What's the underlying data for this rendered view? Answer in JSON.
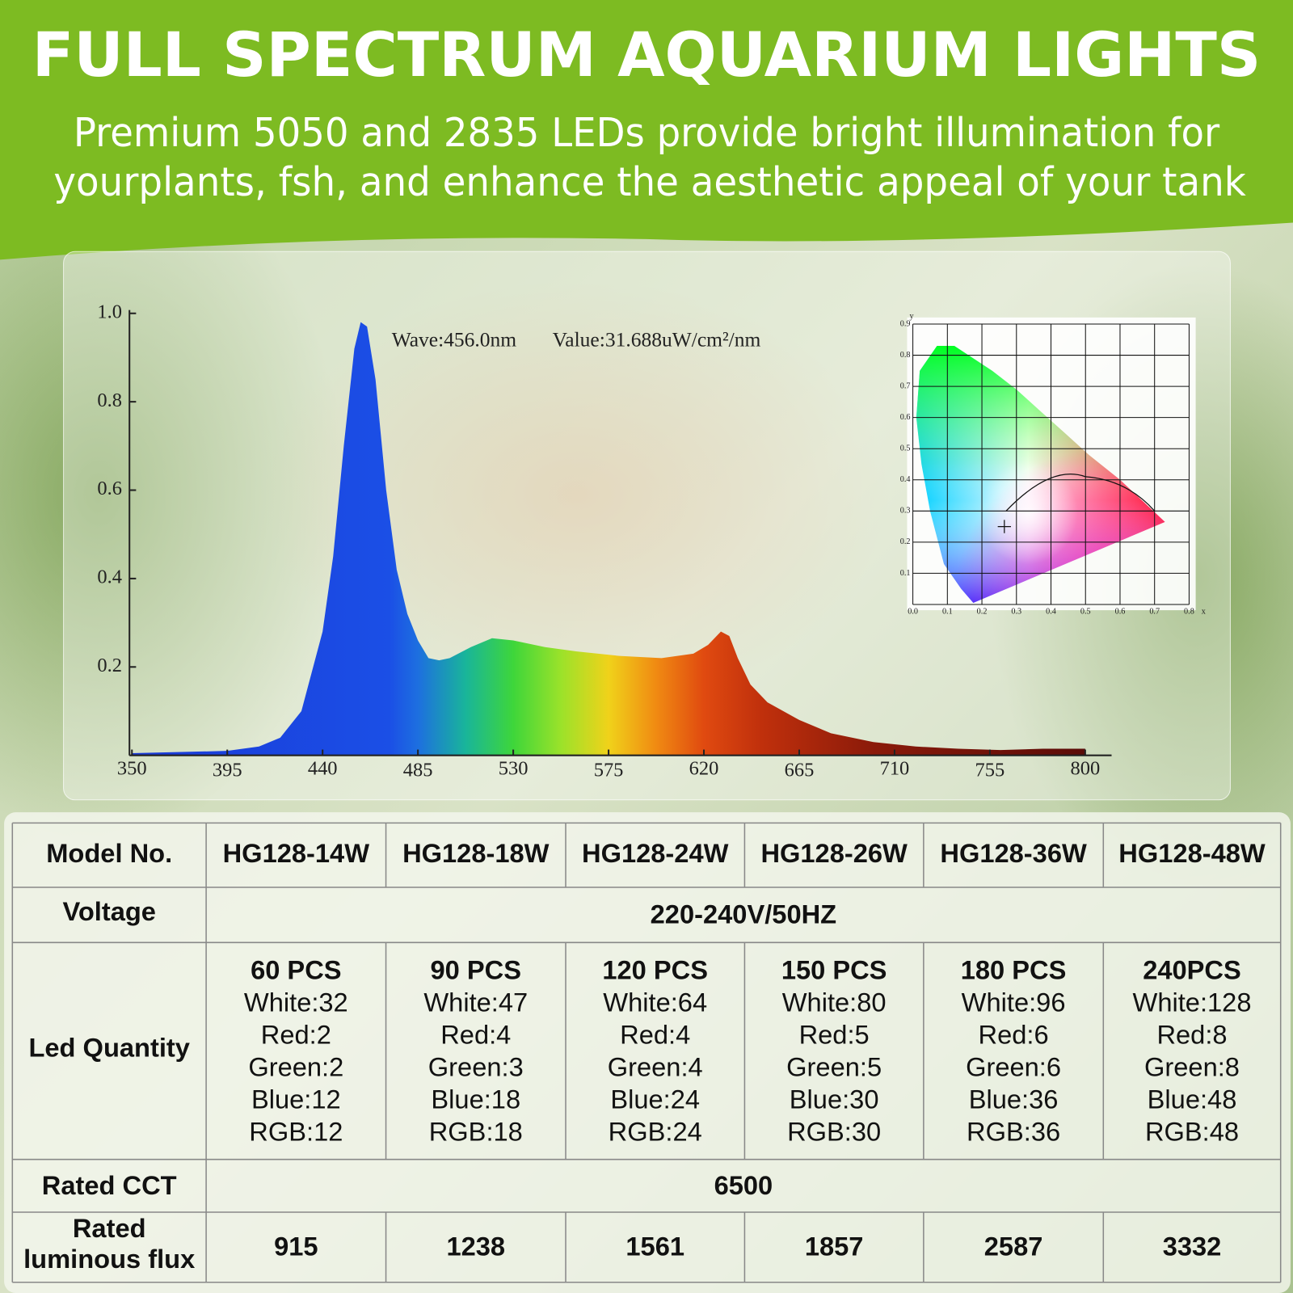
{
  "header": {
    "title": "FULL SPECTRUM AQUARIUM LIGHTS",
    "subtitle": [
      "Premium 5050 and 2835 LEDs provide bright illumination for",
      "yourplants, fsh, and enhance the aesthetic appeal of your tank"
    ]
  },
  "chart_data": {
    "type": "area",
    "annotations": [
      "Wave:456.0nm",
      "Value:31.688uW/cm²/nm"
    ],
    "x": [
      350,
      395,
      410,
      420,
      430,
      440,
      445,
      450,
      455,
      458,
      461,
      465,
      470,
      475,
      480,
      485,
      490,
      495,
      500,
      510,
      520,
      530,
      545,
      560,
      580,
      600,
      615,
      622,
      628,
      632,
      636,
      642,
      650,
      665,
      680,
      700,
      720,
      740,
      760,
      780,
      800
    ],
    "values": [
      0.005,
      0.01,
      0.02,
      0.04,
      0.1,
      0.28,
      0.45,
      0.7,
      0.92,
      0.98,
      0.97,
      0.85,
      0.6,
      0.42,
      0.32,
      0.26,
      0.22,
      0.215,
      0.22,
      0.245,
      0.265,
      0.26,
      0.245,
      0.235,
      0.225,
      0.22,
      0.23,
      0.25,
      0.28,
      0.27,
      0.22,
      0.16,
      0.12,
      0.08,
      0.05,
      0.03,
      0.02,
      0.015,
      0.012,
      0.015,
      0.015
    ],
    "xlim": [
      350,
      800
    ],
    "xticks": [
      350,
      395,
      440,
      485,
      530,
      575,
      620,
      665,
      710,
      755,
      800
    ],
    "ylim": [
      0,
      1
    ],
    "yticks": [
      0.2,
      0.4,
      0.6,
      0.8,
      {
        "value": 1,
        "label": "1.0"
      }
    ]
  },
  "cie_diagram": {
    "xlabel": "x",
    "ylabel": "y",
    "xticks": [
      {
        "value": 0,
        "label": "0.0"
      },
      0.1,
      0.2,
      0.3,
      0.4,
      0.5,
      0.6,
      0.7,
      0.8
    ],
    "yticks": [
      0.1,
      0.2,
      0.3,
      0.4,
      0.5,
      0.6,
      0.7,
      0.8,
      0.9
    ]
  },
  "table": {
    "model_header": "Model No.",
    "models": [
      "HG128-14W",
      "HG128-18W",
      "HG128-24W",
      "HG128-26W",
      "HG128-36W",
      "HG128-48W"
    ],
    "voltage": {
      "label": "Voltage",
      "value": "220-240V/50HZ"
    },
    "led_quantity": {
      "label": "Led Quantity",
      "cells": [
        [
          "60 PCS",
          "White:32",
          "Red:2",
          "Green:2",
          "Blue:12",
          "RGB:12"
        ],
        [
          "90 PCS",
          "White:47",
          "Red:4",
          "Green:3",
          "Blue:18",
          "RGB:18"
        ],
        [
          "120 PCS",
          "White:64",
          "Red:4",
          "Green:4",
          "Blue:24",
          "RGB:24"
        ],
        [
          "150 PCS",
          "White:80",
          "Red:5",
          "Green:5",
          "Blue:30",
          "RGB:30"
        ],
        [
          "180 PCS",
          "White:96",
          "Red:6",
          "Green:6",
          "Blue:36",
          "RGB:36"
        ],
        [
          "240PCS",
          "White:128",
          "Red:8",
          "Green:8",
          "Blue:48",
          "RGB:48"
        ]
      ]
    },
    "cct": {
      "label": "Rated CCT",
      "value": 6500
    },
    "flux": {
      "label": [
        "Rated",
        "luminous flux"
      ],
      "values": [
        915,
        1238,
        1561,
        1857,
        2587,
        3332
      ]
    }
  }
}
